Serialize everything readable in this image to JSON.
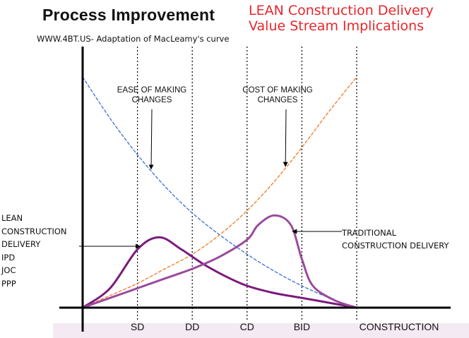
{
  "header": {
    "title": "Process Improvement",
    "subtitle": "WWW.4BT.US- Adaptation of MacLeamy's curve",
    "red_line1": "LEAN Construction Delivery",
    "red_line2": "Value Stream Implications"
  },
  "labels": {
    "ease": [
      "EASE OF MAKING",
      "CHANGES"
    ],
    "cost": [
      "COST OF MAKING",
      "CHANGES"
    ],
    "lean_list": [
      "LEAN",
      "CONSTRUCTION",
      "DELIVERY",
      "IPD",
      "JOC",
      "PPP"
    ],
    "traditional": [
      "TRADITIONAL",
      "CONSTRUCTION DELIVERY"
    ]
  },
  "colors": {
    "ease_curve": "#3a6fd8",
    "cost_curve": "#f07a22",
    "lean_curve": "#7a1a7d",
    "traditional_curve": "#9a4b9c",
    "red_text": "#e8262b"
  },
  "chart_data": {
    "type": "line",
    "x_categories": [
      "SD",
      "DD",
      "CD",
      "BID",
      "CONSTRUCTION"
    ],
    "grid": "vertical dotted lines at phase markers",
    "series": [
      {
        "name": "EASE OF MAKING CHANGES",
        "style": "dashed",
        "x": [
          0,
          0.5,
          1,
          1.5,
          2,
          2.5,
          3,
          3.5,
          4,
          4.5,
          5
        ],
        "y": [
          95,
          78,
          63,
          50,
          39,
          30,
          22,
          15,
          9,
          4,
          0
        ]
      },
      {
        "name": "COST OF MAKING CHANGES",
        "style": "dashed",
        "x": [
          0,
          0.5,
          1,
          1.5,
          2,
          2.5,
          3,
          3.5,
          4,
          4.5,
          5
        ],
        "y": [
          0,
          5,
          10,
          16,
          22,
          30,
          40,
          52,
          66,
          81,
          95
        ]
      },
      {
        "name": "LEAN CONSTRUCTION DELIVERY",
        "style": "solid",
        "x": [
          0,
          0.5,
          1,
          1.4,
          1.8,
          2.2,
          2.6,
          3,
          3.5,
          4,
          4.5,
          5
        ],
        "y": [
          0,
          8,
          24,
          29,
          24,
          18,
          13,
          9,
          6,
          4,
          2,
          0
        ]
      },
      {
        "name": "TRADITIONAL CONSTRUCTION DELIVERY",
        "style": "solid",
        "x": [
          0,
          0.5,
          1,
          1.5,
          2,
          2.5,
          3,
          3.2,
          3.5,
          3.8,
          4,
          4.2,
          4.6,
          5
        ],
        "y": [
          0,
          4,
          8,
          12,
          16,
          21,
          28,
          34,
          38,
          34,
          20,
          9,
          3,
          0
        ]
      }
    ],
    "annotations": [
      {
        "text": "EASE OF MAKING CHANGES",
        "points_to": "EASE OF MAKING CHANGES curve"
      },
      {
        "text": "COST OF MAKING CHANGES",
        "points_to": "COST OF MAKING CHANGES curve"
      },
      {
        "text": "LEAN CONSTRUCTION DELIVERY IPD JOC PPP",
        "points_to": "LEAN CONSTRUCTION DELIVERY curve"
      },
      {
        "text": "TRADITIONAL CONSTRUCTION DELIVERY",
        "points_to": "TRADITIONAL CONSTRUCTION DELIVERY curve"
      }
    ]
  }
}
